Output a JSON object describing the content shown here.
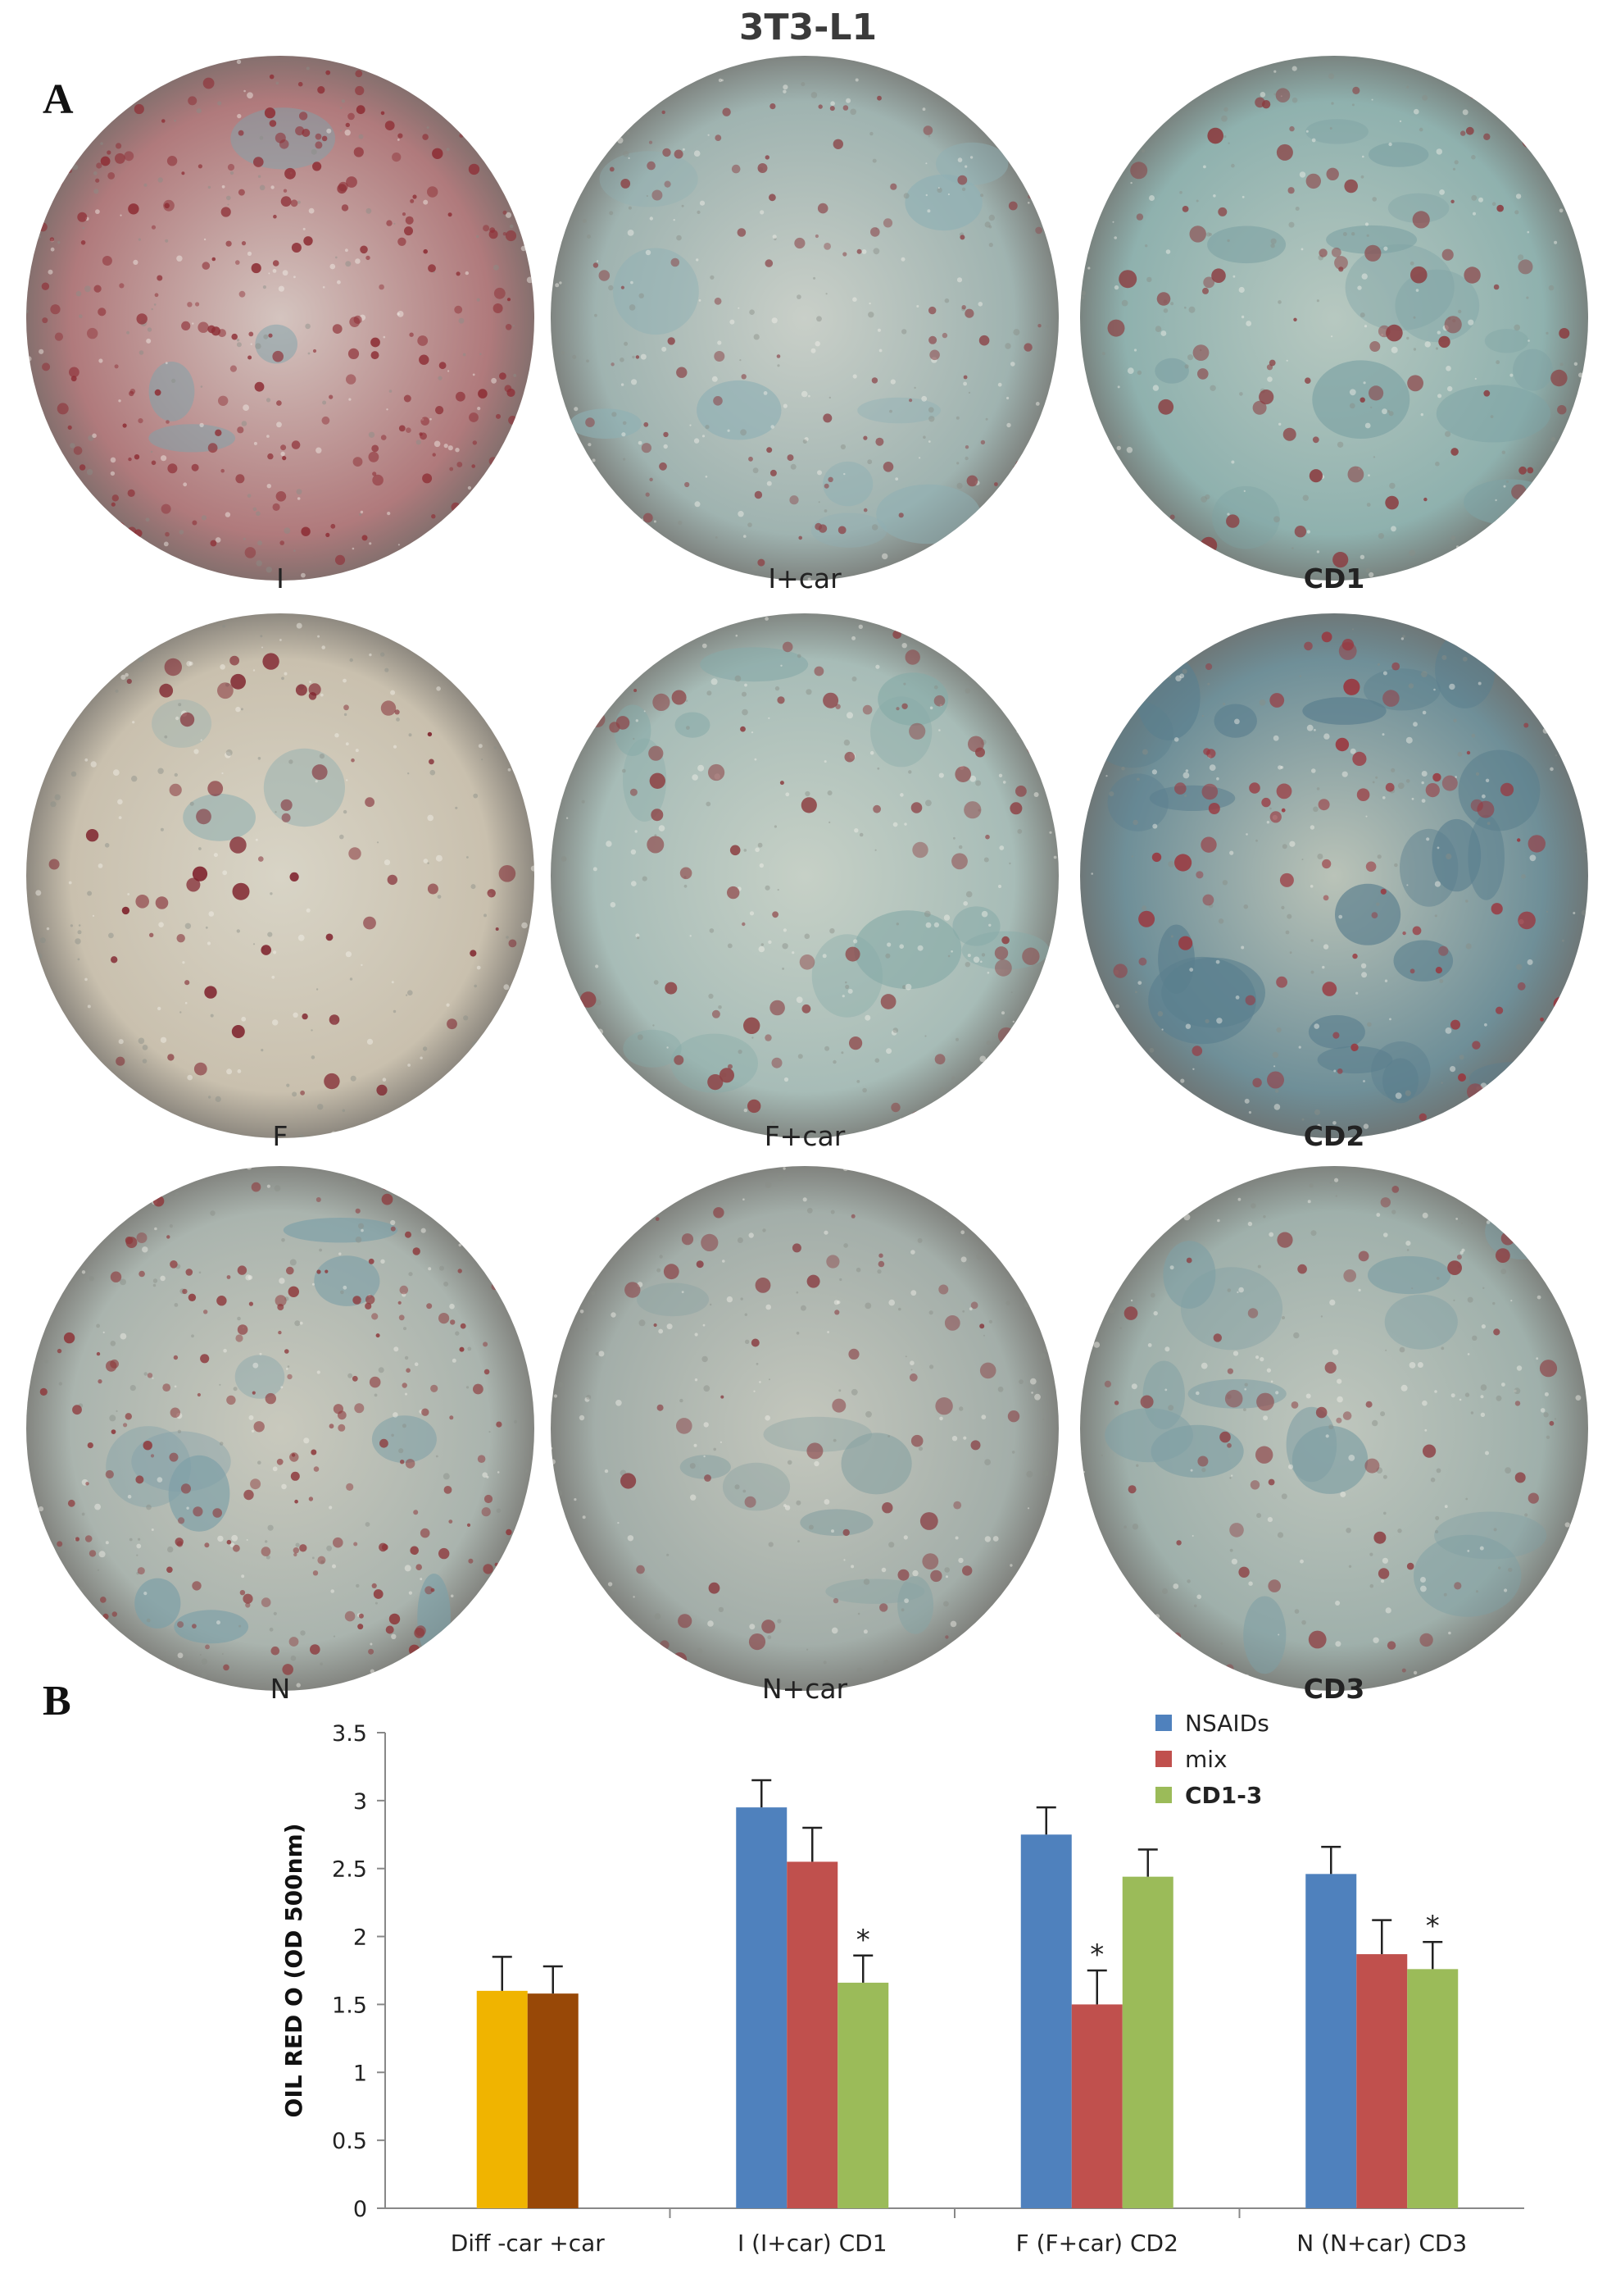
{
  "figure": {
    "title": "3T3-L1",
    "panel_a_letter": "A",
    "panel_b_letter": "B"
  },
  "micrographs": [
    {
      "label": "I",
      "bold": false,
      "base": "#d4c4bf",
      "tint": "#b07a7c",
      "dot": "#8e2f36",
      "blue": "#7fa3ab",
      "dots": 260,
      "bluish": 4
    },
    {
      "label": "I+car",
      "bold": false,
      "base": "#c9cfc8",
      "tint": "#9fb3b0",
      "dot": "#8d4b4f",
      "blue": "#8fb0b4",
      "dots": 110,
      "bluish": 10
    },
    {
      "label": "CD1",
      "bold": true,
      "base": "#b7c8c0",
      "tint": "#8fb1ae",
      "dot": "#8b3b3f",
      "blue": "#7ea2a4",
      "dots": 90,
      "bluish": 14
    },
    {
      "label": "F",
      "bold": false,
      "base": "#d8d4c6",
      "tint": "#c9c0ae",
      "dot": "#7d1f2a",
      "blue": "#93b0b0",
      "dots": 70,
      "bluish": 3
    },
    {
      "label": "F+car",
      "bold": false,
      "base": "#c6d0c6",
      "tint": "#a7bcb7",
      "dot": "#8e4346",
      "blue": "#87aaa8",
      "dots": 80,
      "bluish": 12
    },
    {
      "label": "CD2",
      "bold": true,
      "base": "#bac3b8",
      "tint": "#6f8f98",
      "dot": "#9b343c",
      "blue": "#5b7f8e",
      "dots": 90,
      "bluish": 22
    },
    {
      "label": "N",
      "bold": false,
      "base": "#c9c9bd",
      "tint": "#aab4ae",
      "dot": "#8e3a3d",
      "blue": "#7d9fa7",
      "dots": 200,
      "bluish": 10
    },
    {
      "label": "N+car",
      "bold": false,
      "base": "#c4c7bd",
      "tint": "#a3aea9",
      "dot": "#8a4045",
      "blue": "#8aa3a3",
      "dots": 60,
      "bluish": 8
    },
    {
      "label": "CD3",
      "bold": true,
      "base": "#bfc6bd",
      "tint": "#9fb0ab",
      "dot": "#8e4246",
      "blue": "#7f9fa4",
      "dots": 60,
      "bluish": 14
    }
  ],
  "chart_data": {
    "type": "bar",
    "ylabel": "OIL RED O (OD 500nm)",
    "ylim": [
      0,
      3.5
    ],
    "yticks": [
      0,
      0.5,
      1,
      1.5,
      2,
      2.5,
      3,
      3.5
    ],
    "ytick_labels": [
      "0",
      "0.5",
      "1",
      "1.5",
      "2",
      "2.5",
      "3",
      "3.5"
    ],
    "grid": false,
    "legend_position": "top-right",
    "series": [
      {
        "name": "NSAIDs",
        "color": "#4f81bd",
        "bold": false
      },
      {
        "name": "mix",
        "color": "#c0504d",
        "bold": false
      },
      {
        "name": "CD1-3",
        "color": "#9bbb59",
        "bold": true
      }
    ],
    "groups": [
      {
        "label": "Diff -car  +car",
        "bars": [
          {
            "value": 1.6,
            "error": 0.25,
            "color": "#f0b400",
            "star": false
          },
          {
            "value": 1.58,
            "error": 0.2,
            "color": "#984807",
            "star": false
          }
        ]
      },
      {
        "label": "I (I+car) CD1",
        "bars": [
          {
            "value": 2.95,
            "error": 0.2,
            "color": "#4f81bd",
            "star": false
          },
          {
            "value": 2.55,
            "error": 0.25,
            "color": "#c0504d",
            "star": false
          },
          {
            "value": 1.66,
            "error": 0.2,
            "color": "#9bbb59",
            "star": true
          }
        ]
      },
      {
        "label": "F (F+car) CD2",
        "bars": [
          {
            "value": 2.75,
            "error": 0.2,
            "color": "#4f81bd",
            "star": false
          },
          {
            "value": 1.5,
            "error": 0.25,
            "color": "#c0504d",
            "star": true
          },
          {
            "value": 2.44,
            "error": 0.2,
            "color": "#9bbb59",
            "star": false
          }
        ]
      },
      {
        "label": "N (N+car) CD3",
        "bars": [
          {
            "value": 2.46,
            "error": 0.2,
            "color": "#4f81bd",
            "star": false
          },
          {
            "value": 1.87,
            "error": 0.25,
            "color": "#c0504d",
            "star": false
          },
          {
            "value": 1.76,
            "error": 0.2,
            "color": "#9bbb59",
            "star": true
          }
        ]
      }
    ],
    "annotation": "*"
  }
}
